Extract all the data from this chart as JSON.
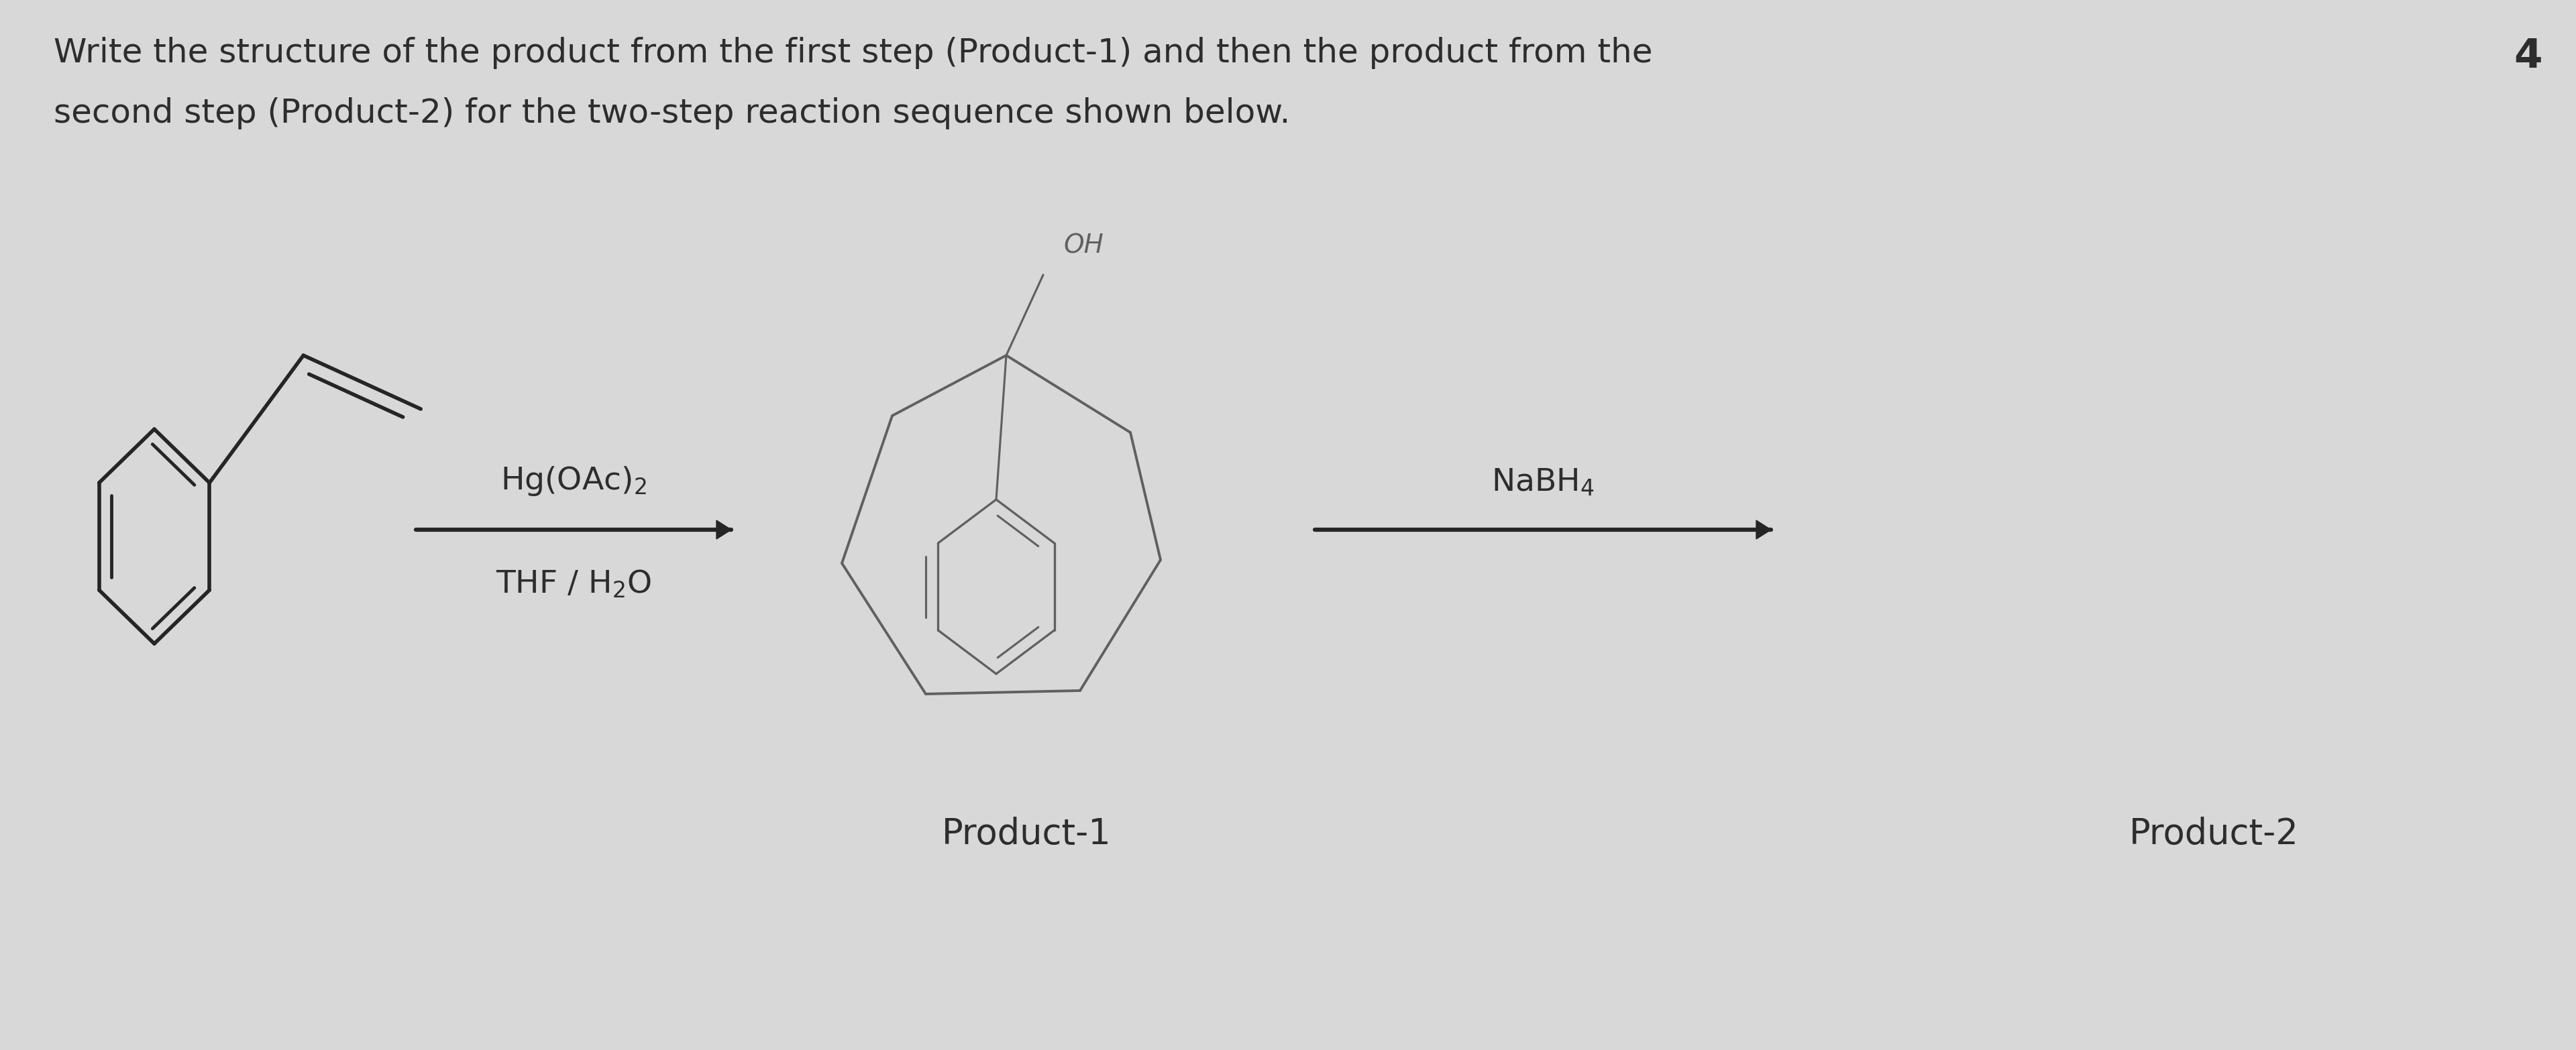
{
  "bg_color": "#d8d8d8",
  "text_color": "#2d2d2d",
  "title_line1": "Write the structure of the product from the first step (Product-1) and then the product from the",
  "title_line2": "second step (Product-2) for the two-step reaction sequence shown below.",
  "question_number": "4",
  "label1": "Product-1",
  "label2": "Product-2",
  "reagent1_above": "Hg(OAc)$_2$",
  "reagent1_below": "THF / H$_2$O",
  "reagent2_above": "NaBH$_4$"
}
